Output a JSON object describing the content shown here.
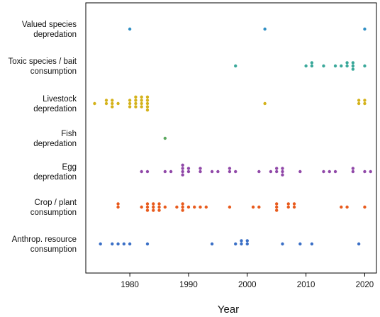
{
  "chart_data": {
    "type": "scatter",
    "xlabel": "Year",
    "ylabel": "",
    "xlim": [
      1972.5,
      2022
    ],
    "x_ticks": [
      1980,
      1990,
      2000,
      2010,
      2020
    ],
    "x_tick_labels": [
      "1980",
      "1990",
      "2000",
      "2010",
      "2020"
    ],
    "grid": false,
    "categories": [
      {
        "label_lines": [
          "Valued species",
          "depredation"
        ],
        "color": "#2f8fc4",
        "points": [
          [
            1980,
            0
          ],
          [
            2003,
            0
          ],
          [
            2020,
            0
          ]
        ]
      },
      {
        "label_lines": [
          "Toxic species / bait",
          "consumption"
        ],
        "color": "#3aa89a",
        "points": [
          [
            1998,
            0
          ],
          [
            2010,
            0
          ],
          [
            2011,
            1
          ],
          [
            2011,
            0
          ],
          [
            2013,
            0
          ],
          [
            2015,
            0
          ],
          [
            2016,
            0
          ],
          [
            2017,
            1
          ],
          [
            2017,
            0
          ],
          [
            2018,
            1
          ],
          [
            2018,
            0
          ],
          [
            2018,
            -1
          ],
          [
            2020,
            0
          ]
        ]
      },
      {
        "label_lines": [
          "Livestock",
          "depredation"
        ],
        "color": "#d4b21a",
        "points": [
          [
            1974,
            0
          ],
          [
            1976,
            1
          ],
          [
            1976,
            0
          ],
          [
            1977,
            1
          ],
          [
            1977,
            0
          ],
          [
            1977,
            -1
          ],
          [
            1978,
            0
          ],
          [
            1980,
            1
          ],
          [
            1980,
            0
          ],
          [
            1980,
            -1
          ],
          [
            1981,
            2
          ],
          [
            1981,
            1
          ],
          [
            1981,
            0
          ],
          [
            1981,
            -1
          ],
          [
            1982,
            2
          ],
          [
            1982,
            1
          ],
          [
            1982,
            0
          ],
          [
            1982,
            -1
          ],
          [
            1983,
            2
          ],
          [
            1983,
            1
          ],
          [
            1983,
            0
          ],
          [
            1983,
            -1
          ],
          [
            1983,
            -2
          ],
          [
            2003,
            0
          ],
          [
            2019,
            1
          ],
          [
            2019,
            0
          ],
          [
            2020,
            1
          ],
          [
            2020,
            0
          ]
        ]
      },
      {
        "label_lines": [
          "Fish",
          "depredation"
        ],
        "color": "#5aa85e",
        "points": [
          [
            1986,
            0
          ]
        ]
      },
      {
        "label_lines": [
          "Egg",
          "depredation"
        ],
        "color": "#9048a8",
        "points": [
          [
            1982,
            0
          ],
          [
            1983,
            0
          ],
          [
            1986,
            0
          ],
          [
            1987,
            0
          ],
          [
            1989,
            2
          ],
          [
            1989,
            1
          ],
          [
            1989,
            0
          ],
          [
            1989,
            -1
          ],
          [
            1990,
            1
          ],
          [
            1990,
            0
          ],
          [
            1992,
            1
          ],
          [
            1992,
            0
          ],
          [
            1994,
            0
          ],
          [
            1995,
            0
          ],
          [
            1997,
            1
          ],
          [
            1997,
            0
          ],
          [
            1998,
            0
          ],
          [
            2002,
            0
          ],
          [
            2004,
            0
          ],
          [
            2005,
            1
          ],
          [
            2005,
            0
          ],
          [
            2006,
            1
          ],
          [
            2006,
            0
          ],
          [
            2006,
            -1
          ],
          [
            2009,
            0
          ],
          [
            2013,
            0
          ],
          [
            2014,
            0
          ],
          [
            2015,
            0
          ],
          [
            2018,
            1
          ],
          [
            2018,
            0
          ],
          [
            2020,
            0
          ],
          [
            2021,
            0
          ]
        ]
      },
      {
        "label_lines": [
          "Crop / plant",
          "consumption"
        ],
        "color": "#e85a1c",
        "points": [
          [
            1978,
            1
          ],
          [
            1978,
            0
          ],
          [
            1982,
            0
          ],
          [
            1983,
            1
          ],
          [
            1983,
            0
          ],
          [
            1983,
            -1
          ],
          [
            1984,
            1
          ],
          [
            1984,
            0
          ],
          [
            1984,
            -1
          ],
          [
            1985,
            1
          ],
          [
            1985,
            0
          ],
          [
            1985,
            -1
          ],
          [
            1986,
            0
          ],
          [
            1988,
            0
          ],
          [
            1989,
            1
          ],
          [
            1989,
            0
          ],
          [
            1989,
            -1
          ],
          [
            1990,
            0
          ],
          [
            1991,
            0
          ],
          [
            1992,
            0
          ],
          [
            1993,
            0
          ],
          [
            1997,
            0
          ],
          [
            2001,
            0
          ],
          [
            2002,
            0
          ],
          [
            2005,
            1
          ],
          [
            2005,
            0
          ],
          [
            2005,
            -1
          ],
          [
            2007,
            1
          ],
          [
            2007,
            0
          ],
          [
            2008,
            1
          ],
          [
            2008,
            0
          ],
          [
            2016,
            0
          ],
          [
            2017,
            0
          ],
          [
            2020,
            0
          ]
        ]
      },
      {
        "label_lines": [
          "Anthrop. resource",
          "consumption"
        ],
        "color": "#3a6fc6",
        "points": [
          [
            1975,
            0
          ],
          [
            1977,
            0
          ],
          [
            1978,
            0
          ],
          [
            1979,
            0
          ],
          [
            1980,
            0
          ],
          [
            1983,
            0
          ],
          [
            1994,
            0
          ],
          [
            1998,
            0
          ],
          [
            1999,
            1
          ],
          [
            1999,
            0
          ],
          [
            2000,
            1
          ],
          [
            2000,
            0
          ],
          [
            2006,
            0
          ],
          [
            2009,
            0
          ],
          [
            2011,
            0
          ],
          [
            2019,
            0
          ]
        ]
      }
    ]
  }
}
